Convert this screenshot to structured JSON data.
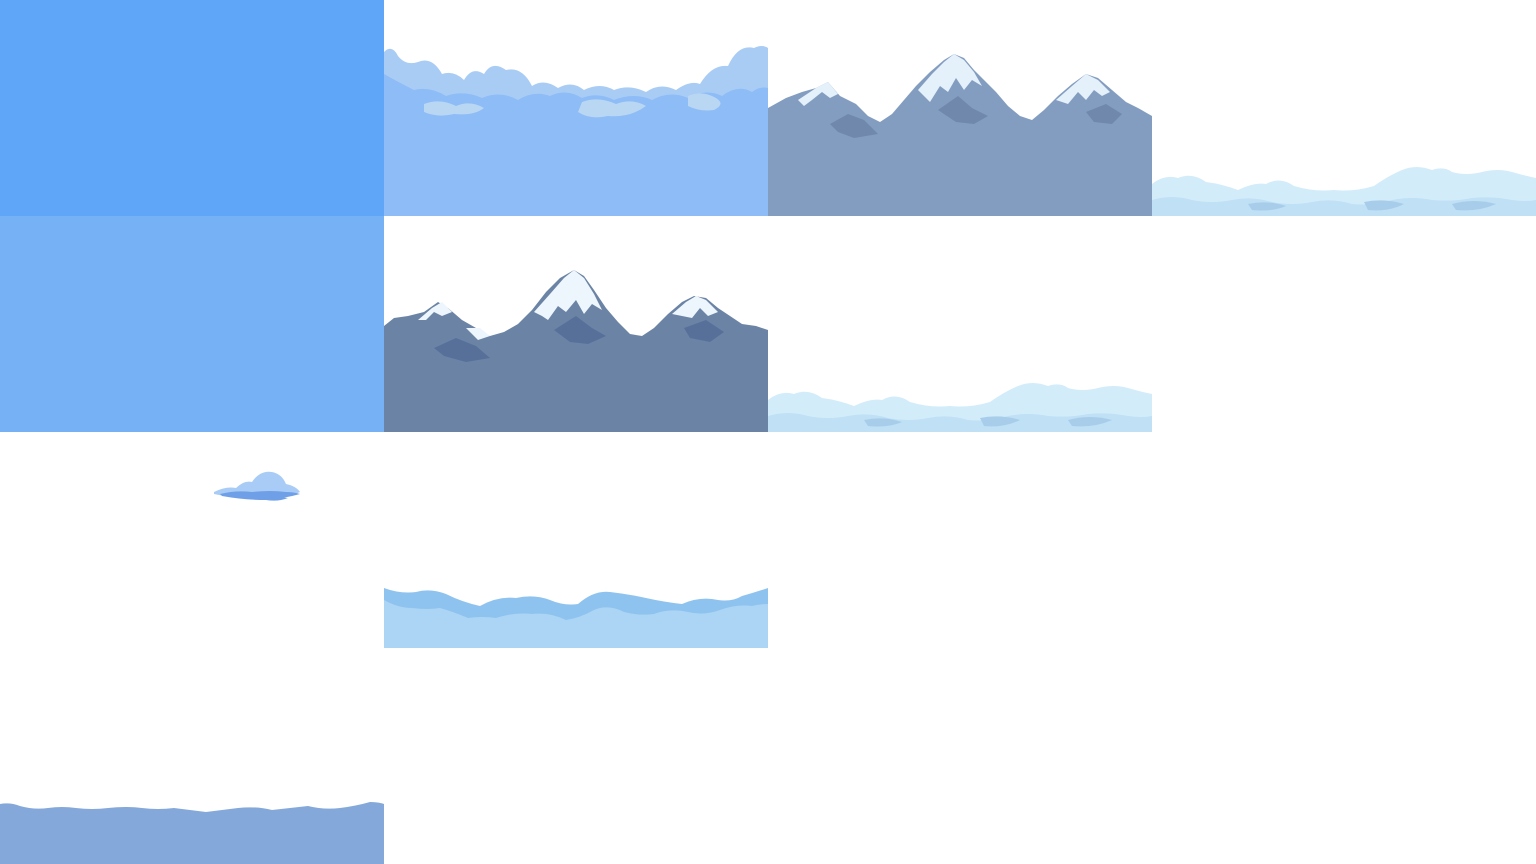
{
  "sprite_sheet": {
    "grid": {
      "columns": 4,
      "rows": 4
    },
    "tiles": [
      {
        "id": "sky-a",
        "kind": "sky fill",
        "colors": {
          "fill": "#5fa5f8"
        }
      },
      {
        "id": "clouds-a",
        "kind": "cloud band",
        "colors": {
          "back": "#a9ccf5",
          "front": "#8dbcf6",
          "shade": "#b9d6f2"
        }
      },
      {
        "id": "mountains-a",
        "kind": "snowy mountain range",
        "colors": {
          "rock": "#839dc0",
          "snow": "#e4f0fa",
          "shadow": "#6f88ac"
        }
      },
      {
        "id": "fog-a",
        "kind": "low mist band",
        "colors": {
          "light": "#d3ecfa",
          "mid": "#bfe0f5",
          "dark": "#a7cdea"
        }
      },
      {
        "id": "sky-b",
        "kind": "sky fill",
        "colors": {
          "fill": "#76b1f6"
        }
      },
      {
        "id": "mountains-b",
        "kind": "snowy mountain range",
        "colors": {
          "rock": "#6b83a4",
          "snow": "#eef6fd",
          "shadow": "#56709a"
        }
      },
      {
        "id": "fog-b",
        "kind": "low mist band",
        "colors": {
          "light": "#d3ecfa",
          "mid": "#bfe0f5",
          "dark": "#a7cdea"
        }
      },
      {
        "id": "empty-1",
        "kind": "empty"
      },
      {
        "id": "cloud-small",
        "kind": "single small cloud",
        "colors": {
          "light": "#a8ccf6",
          "dark": "#6f9fe6"
        }
      },
      {
        "id": "clouds-b",
        "kind": "cloud band",
        "colors": {
          "back": "#8fc3ef",
          "front": "#acd5f5"
        }
      },
      {
        "id": "empty-2",
        "kind": "empty"
      },
      {
        "id": "empty-3",
        "kind": "empty"
      },
      {
        "id": "hills",
        "kind": "distant hill band",
        "colors": {
          "fill": "#84a8d9"
        }
      },
      {
        "id": "empty-4",
        "kind": "empty"
      },
      {
        "id": "empty-5",
        "kind": "empty"
      },
      {
        "id": "empty-6",
        "kind": "empty"
      }
    ]
  }
}
